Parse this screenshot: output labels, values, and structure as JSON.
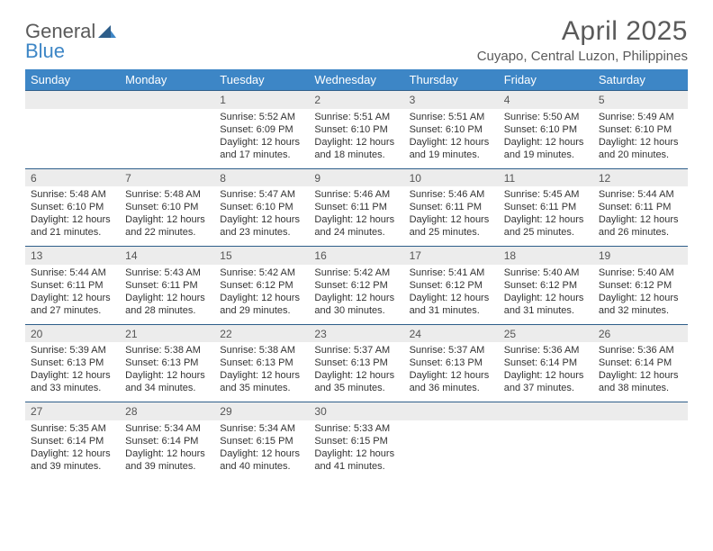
{
  "logo": {
    "general": "General",
    "blue": "Blue"
  },
  "title": "April 2025",
  "location": "Cuyapo, Central Luzon, Philippines",
  "colors": {
    "header_bg": "#3d86c6",
    "header_text": "#ffffff",
    "date_bg": "#ececec",
    "rule": "#2e5e8a",
    "logo_gray": "#5a5a5a",
    "logo_blue": "#3d86c6",
    "body_text": "#333333"
  },
  "weekdays": [
    "Sunday",
    "Monday",
    "Tuesday",
    "Wednesday",
    "Thursday",
    "Friday",
    "Saturday"
  ],
  "weeks": [
    [
      {
        "date": "",
        "sunrise": "",
        "sunset": "",
        "daylight": ""
      },
      {
        "date": "",
        "sunrise": "",
        "sunset": "",
        "daylight": ""
      },
      {
        "date": "1",
        "sunrise": "Sunrise: 5:52 AM",
        "sunset": "Sunset: 6:09 PM",
        "daylight": "Daylight: 12 hours and 17 minutes."
      },
      {
        "date": "2",
        "sunrise": "Sunrise: 5:51 AM",
        "sunset": "Sunset: 6:10 PM",
        "daylight": "Daylight: 12 hours and 18 minutes."
      },
      {
        "date": "3",
        "sunrise": "Sunrise: 5:51 AM",
        "sunset": "Sunset: 6:10 PM",
        "daylight": "Daylight: 12 hours and 19 minutes."
      },
      {
        "date": "4",
        "sunrise": "Sunrise: 5:50 AM",
        "sunset": "Sunset: 6:10 PM",
        "daylight": "Daylight: 12 hours and 19 minutes."
      },
      {
        "date": "5",
        "sunrise": "Sunrise: 5:49 AM",
        "sunset": "Sunset: 6:10 PM",
        "daylight": "Daylight: 12 hours and 20 minutes."
      }
    ],
    [
      {
        "date": "6",
        "sunrise": "Sunrise: 5:48 AM",
        "sunset": "Sunset: 6:10 PM",
        "daylight": "Daylight: 12 hours and 21 minutes."
      },
      {
        "date": "7",
        "sunrise": "Sunrise: 5:48 AM",
        "sunset": "Sunset: 6:10 PM",
        "daylight": "Daylight: 12 hours and 22 minutes."
      },
      {
        "date": "8",
        "sunrise": "Sunrise: 5:47 AM",
        "sunset": "Sunset: 6:10 PM",
        "daylight": "Daylight: 12 hours and 23 minutes."
      },
      {
        "date": "9",
        "sunrise": "Sunrise: 5:46 AM",
        "sunset": "Sunset: 6:11 PM",
        "daylight": "Daylight: 12 hours and 24 minutes."
      },
      {
        "date": "10",
        "sunrise": "Sunrise: 5:46 AM",
        "sunset": "Sunset: 6:11 PM",
        "daylight": "Daylight: 12 hours and 25 minutes."
      },
      {
        "date": "11",
        "sunrise": "Sunrise: 5:45 AM",
        "sunset": "Sunset: 6:11 PM",
        "daylight": "Daylight: 12 hours and 25 minutes."
      },
      {
        "date": "12",
        "sunrise": "Sunrise: 5:44 AM",
        "sunset": "Sunset: 6:11 PM",
        "daylight": "Daylight: 12 hours and 26 minutes."
      }
    ],
    [
      {
        "date": "13",
        "sunrise": "Sunrise: 5:44 AM",
        "sunset": "Sunset: 6:11 PM",
        "daylight": "Daylight: 12 hours and 27 minutes."
      },
      {
        "date": "14",
        "sunrise": "Sunrise: 5:43 AM",
        "sunset": "Sunset: 6:11 PM",
        "daylight": "Daylight: 12 hours and 28 minutes."
      },
      {
        "date": "15",
        "sunrise": "Sunrise: 5:42 AM",
        "sunset": "Sunset: 6:12 PM",
        "daylight": "Daylight: 12 hours and 29 minutes."
      },
      {
        "date": "16",
        "sunrise": "Sunrise: 5:42 AM",
        "sunset": "Sunset: 6:12 PM",
        "daylight": "Daylight: 12 hours and 30 minutes."
      },
      {
        "date": "17",
        "sunrise": "Sunrise: 5:41 AM",
        "sunset": "Sunset: 6:12 PM",
        "daylight": "Daylight: 12 hours and 31 minutes."
      },
      {
        "date": "18",
        "sunrise": "Sunrise: 5:40 AM",
        "sunset": "Sunset: 6:12 PM",
        "daylight": "Daylight: 12 hours and 31 minutes."
      },
      {
        "date": "19",
        "sunrise": "Sunrise: 5:40 AM",
        "sunset": "Sunset: 6:12 PM",
        "daylight": "Daylight: 12 hours and 32 minutes."
      }
    ],
    [
      {
        "date": "20",
        "sunrise": "Sunrise: 5:39 AM",
        "sunset": "Sunset: 6:13 PM",
        "daylight": "Daylight: 12 hours and 33 minutes."
      },
      {
        "date": "21",
        "sunrise": "Sunrise: 5:38 AM",
        "sunset": "Sunset: 6:13 PM",
        "daylight": "Daylight: 12 hours and 34 minutes."
      },
      {
        "date": "22",
        "sunrise": "Sunrise: 5:38 AM",
        "sunset": "Sunset: 6:13 PM",
        "daylight": "Daylight: 12 hours and 35 minutes."
      },
      {
        "date": "23",
        "sunrise": "Sunrise: 5:37 AM",
        "sunset": "Sunset: 6:13 PM",
        "daylight": "Daylight: 12 hours and 35 minutes."
      },
      {
        "date": "24",
        "sunrise": "Sunrise: 5:37 AM",
        "sunset": "Sunset: 6:13 PM",
        "daylight": "Daylight: 12 hours and 36 minutes."
      },
      {
        "date": "25",
        "sunrise": "Sunrise: 5:36 AM",
        "sunset": "Sunset: 6:14 PM",
        "daylight": "Daylight: 12 hours and 37 minutes."
      },
      {
        "date": "26",
        "sunrise": "Sunrise: 5:36 AM",
        "sunset": "Sunset: 6:14 PM",
        "daylight": "Daylight: 12 hours and 38 minutes."
      }
    ],
    [
      {
        "date": "27",
        "sunrise": "Sunrise: 5:35 AM",
        "sunset": "Sunset: 6:14 PM",
        "daylight": "Daylight: 12 hours and 39 minutes."
      },
      {
        "date": "28",
        "sunrise": "Sunrise: 5:34 AM",
        "sunset": "Sunset: 6:14 PM",
        "daylight": "Daylight: 12 hours and 39 minutes."
      },
      {
        "date": "29",
        "sunrise": "Sunrise: 5:34 AM",
        "sunset": "Sunset: 6:15 PM",
        "daylight": "Daylight: 12 hours and 40 minutes."
      },
      {
        "date": "30",
        "sunrise": "Sunrise: 5:33 AM",
        "sunset": "Sunset: 6:15 PM",
        "daylight": "Daylight: 12 hours and 41 minutes."
      },
      {
        "date": "",
        "sunrise": "",
        "sunset": "",
        "daylight": ""
      },
      {
        "date": "",
        "sunrise": "",
        "sunset": "",
        "daylight": ""
      },
      {
        "date": "",
        "sunrise": "",
        "sunset": "",
        "daylight": ""
      }
    ]
  ]
}
